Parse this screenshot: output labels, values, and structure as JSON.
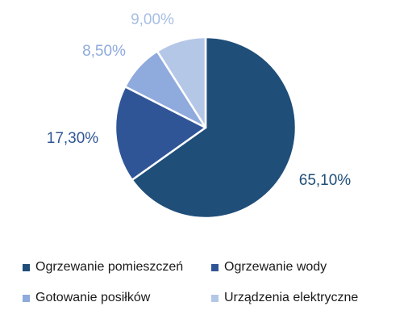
{
  "chart_data": {
    "type": "pie",
    "title": "",
    "categories": [
      "Ogrzewanie pomieszczeń",
      "Ogrzewanie wody",
      "Gotowanie posiłków",
      "Urządzenia elektryczne"
    ],
    "values": [
      65.1,
      17.3,
      8.5,
      9.0
    ],
    "data_labels": [
      "65,10%",
      "17,30%",
      "8,50%",
      "9,00%"
    ],
    "colors": [
      "#1F4E79",
      "#2F5597",
      "#8FAADC",
      "#B4C7E7"
    ],
    "label_colors": [
      "#1F4E79",
      "#2F5597",
      "#8FAADC",
      "#A7BEE3"
    ],
    "legend_position": "bottom",
    "start_angle": "12 o'clock",
    "direction": "clockwise"
  }
}
